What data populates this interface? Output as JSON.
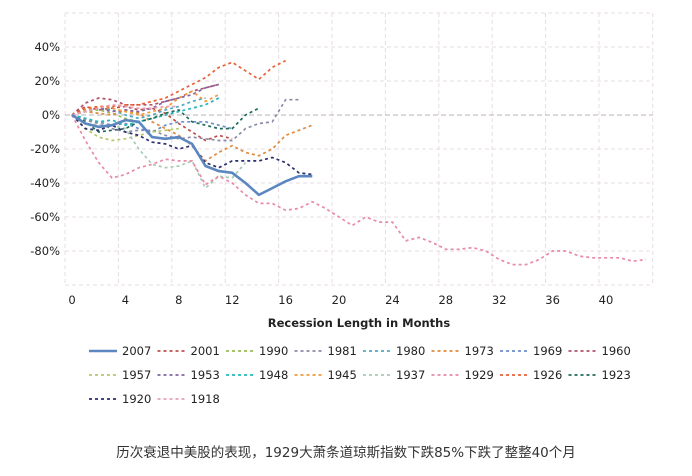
{
  "chart_data": {
    "type": "line",
    "title": "",
    "xlabel": "Recession Length in Months",
    "ylabel": "",
    "xlim": [
      0,
      43.5
    ],
    "ylim": [
      -100,
      60
    ],
    "x_ticks": [
      0,
      4,
      8,
      12,
      16,
      20,
      24,
      28,
      32,
      36,
      40
    ],
    "x_tick_labels": [
      "0",
      "4",
      "8",
      "12",
      "16",
      "20",
      "24",
      "28",
      "32",
      "36",
      "40"
    ],
    "y_ticks": [
      40,
      20,
      0,
      -20,
      -40,
      -60,
      -80
    ],
    "y_tick_labels": [
      "40%",
      "20%",
      "0%",
      "-20%",
      "-40%",
      "-60%",
      "-80%"
    ],
    "grid": true,
    "legend_position": "bottom",
    "series": [
      {
        "name": "2007",
        "color": "#5b86c0",
        "style": "solid",
        "values": [
          0,
          -5,
          -7,
          -6,
          -3,
          -4,
          -13,
          -14,
          -13,
          -17,
          -30,
          -33,
          -34,
          -40,
          -47,
          -43,
          -39,
          -36,
          -36
        ]
      },
      {
        "name": "2001",
        "color": "#c0504d",
        "style": "dashed",
        "values": [
          0,
          5,
          3,
          4,
          5,
          3,
          4,
          1,
          -5,
          -10,
          -15,
          -12,
          -14
        ]
      },
      {
        "name": "1990",
        "color": "#9bbb59",
        "style": "dashed",
        "values": [
          0,
          2,
          3,
          1,
          -2,
          -4,
          -2,
          0
        ]
      },
      {
        "name": "1981",
        "color": "#8b8ba8",
        "style": "dashed",
        "values": [
          0,
          -3,
          -5,
          -8,
          -10,
          -9,
          -9,
          -12,
          -14,
          -13,
          -14,
          -15,
          -15,
          -8,
          -5,
          -4,
          9,
          9
        ]
      },
      {
        "name": "1980",
        "color": "#4bacc6",
        "style": "dashed",
        "values": [
          0,
          2,
          4,
          3,
          0,
          -2,
          0,
          3,
          5,
          8,
          10
        ]
      },
      {
        "name": "1973",
        "color": "#e08a3c",
        "style": "dashed",
        "values": [
          0,
          2,
          1,
          0,
          3,
          1,
          -4,
          -8,
          -12,
          -18,
          -27,
          -22,
          -18,
          -22,
          -24,
          -20,
          -12,
          -9,
          -6
        ]
      },
      {
        "name": "1969",
        "color": "#6d8fc7",
        "style": "dashed",
        "values": [
          0,
          -2,
          -4,
          -6,
          -5,
          -8,
          -10,
          -6,
          -4,
          -4,
          -4,
          -6,
          -8
        ]
      },
      {
        "name": "1960",
        "color": "#b0526a",
        "style": "dashed",
        "values": [
          0,
          7,
          10,
          9,
          6,
          6,
          6,
          8,
          10,
          14,
          16,
          18
        ]
      },
      {
        "name": "1957",
        "color": "#b5c96a",
        "style": "dashed",
        "values": [
          0,
          -8,
          -13,
          -15,
          -14,
          -12,
          -10,
          -9,
          -8
        ]
      },
      {
        "name": "1953",
        "color": "#8064a2",
        "style": "dashed",
        "values": [
          0,
          3,
          4,
          2,
          3,
          2,
          4,
          8,
          10,
          12,
          16,
          18
        ]
      },
      {
        "name": "1948",
        "color": "#2bb5b8",
        "style": "dashed",
        "values": [
          0,
          -2,
          -4,
          -3,
          -6,
          -4,
          -2,
          0,
          2,
          4,
          6,
          10
        ]
      },
      {
        "name": "1945",
        "color": "#f09a3e",
        "style": "dashed",
        "values": [
          0,
          3,
          5,
          4,
          2,
          0,
          2,
          4,
          10,
          14,
          8,
          12
        ]
      },
      {
        "name": "1937",
        "color": "#a8cbb5",
        "style": "dashed",
        "values": [
          0,
          -5,
          -6,
          -6,
          -8,
          -20,
          -29,
          -31,
          -30,
          -27,
          -43,
          -36,
          -37,
          -28
        ]
      },
      {
        "name": "1929",
        "color": "#e88aa8",
        "style": "dashed",
        "values": [
          0,
          -15,
          -28,
          -37,
          -35,
          -31,
          -29,
          -26,
          -27,
          -27,
          -41,
          -36,
          -40,
          -47,
          -52,
          -52,
          -56,
          -55,
          -51,
          -55,
          -60,
          -65,
          -60,
          -63,
          -63,
          -74,
          -72,
          -75,
          -79,
          -79,
          -78,
          -80,
          -85,
          -88,
          -88,
          -85,
          -80,
          -80,
          -83,
          -84,
          -84,
          -84,
          -86,
          -85
        ]
      },
      {
        "name": "1926",
        "color": "#e8623a",
        "style": "dashed",
        "values": [
          0,
          4,
          5,
          5,
          6,
          6,
          8,
          10,
          14,
          18,
          22,
          28,
          31,
          26,
          21,
          28,
          32
        ]
      },
      {
        "name": "1923",
        "color": "#1f6b5a",
        "style": "dashed",
        "values": [
          0,
          -4,
          -10,
          -9,
          -8,
          -4,
          -2,
          1,
          3,
          -4,
          -6,
          -8,
          -8,
          0,
          4
        ]
      },
      {
        "name": "1920",
        "color": "#2b2f6e",
        "style": "dashed",
        "values": [
          0,
          -8,
          -9,
          -6,
          -10,
          -12,
          -16,
          -17,
          -20,
          -18,
          -28,
          -31,
          -27,
          -27,
          -27,
          -25,
          -28,
          -34,
          -35
        ]
      },
      {
        "name": "1918",
        "color": "#e8a0b8",
        "style": "dashed",
        "values": [
          0,
          2,
          4,
          6,
          5,
          4,
          4,
          5,
          5
        ]
      }
    ]
  },
  "caption": "历次衰退中美股的表现，1929大萧条道琼斯指数下跌85%下跌了整整40个月"
}
